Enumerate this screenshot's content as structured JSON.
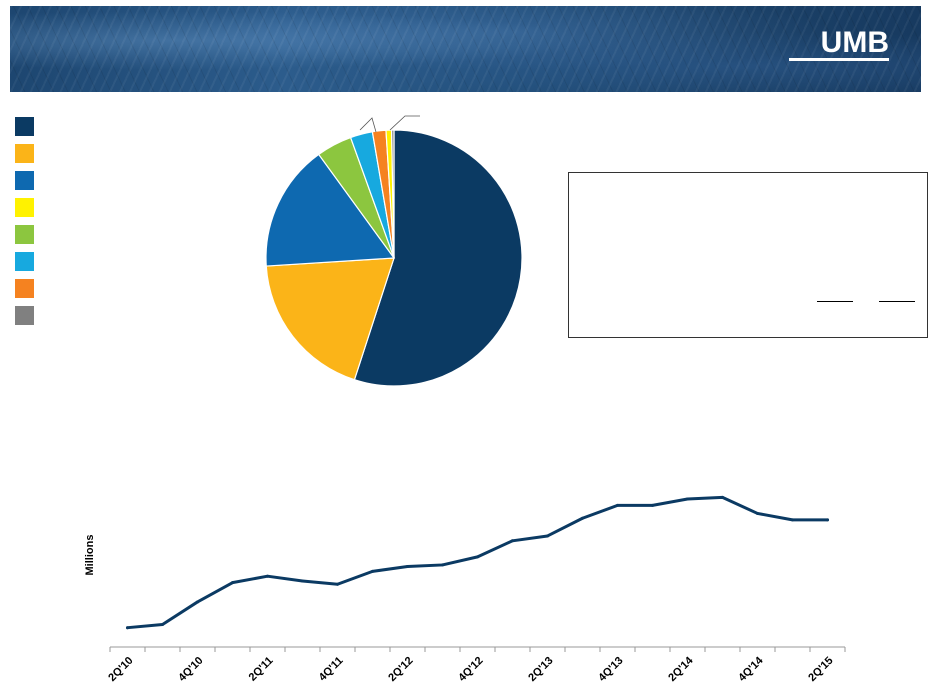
{
  "header": {
    "logo_text": "UMB"
  },
  "colors": {
    "line": "#0b3a63",
    "axis": "#999999"
  },
  "chart_data": [
    {
      "type": "pie",
      "title": "",
      "legend_position": "left",
      "slices": [
        {
          "label": "",
          "value": 55.0,
          "color": "#0b3a63"
        },
        {
          "label": "",
          "value": 19.0,
          "color": "#fbb418"
        },
        {
          "label": "",
          "value": 16.0,
          "color": "#0e69b0"
        },
        {
          "label": "",
          "value": 4.5,
          "color": "#8cc63f"
        },
        {
          "label": "",
          "value": 2.8,
          "color": "#17a9df"
        },
        {
          "label": "",
          "value": 1.7,
          "color": "#f58220"
        },
        {
          "label": "",
          "value": 0.7,
          "color": "#fff200"
        },
        {
          "label": "",
          "value": 0.3,
          "color": "#808080"
        }
      ],
      "legend_colors": [
        "#0b3a63",
        "#fbb418",
        "#0e69b0",
        "#fff200",
        "#8cc63f",
        "#17a9df",
        "#f58220",
        "#808080"
      ]
    },
    {
      "type": "line",
      "title": "",
      "xlabel": "",
      "ylabel": "Millions",
      "grid": false,
      "x": [
        "2Q'10",
        "3Q'10",
        "4Q'10",
        "1Q'11",
        "2Q'11",
        "3Q'11",
        "4Q'11",
        "1Q'12",
        "2Q'12",
        "3Q'12",
        "4Q'12",
        "1Q'13",
        "2Q'13",
        "3Q'13",
        "4Q'13",
        "1Q'14",
        "2Q'14",
        "3Q'14",
        "4Q'14",
        "1Q'15",
        "2Q'15"
      ],
      "tick_labels": [
        "2Q'10",
        "4Q'10",
        "2Q'11",
        "4Q'11",
        "2Q'12",
        "4Q'12",
        "2Q'13",
        "4Q'13",
        "2Q'14",
        "4Q'14",
        "2Q'15"
      ],
      "series": [
        {
          "values": [
            12,
            14,
            28,
            40,
            44,
            41,
            39,
            47,
            50,
            51,
            56,
            66,
            69,
            80,
            88,
            88,
            92,
            93,
            83,
            79,
            79
          ]
        }
      ],
      "ylim": [
        0,
        110
      ]
    }
  ]
}
